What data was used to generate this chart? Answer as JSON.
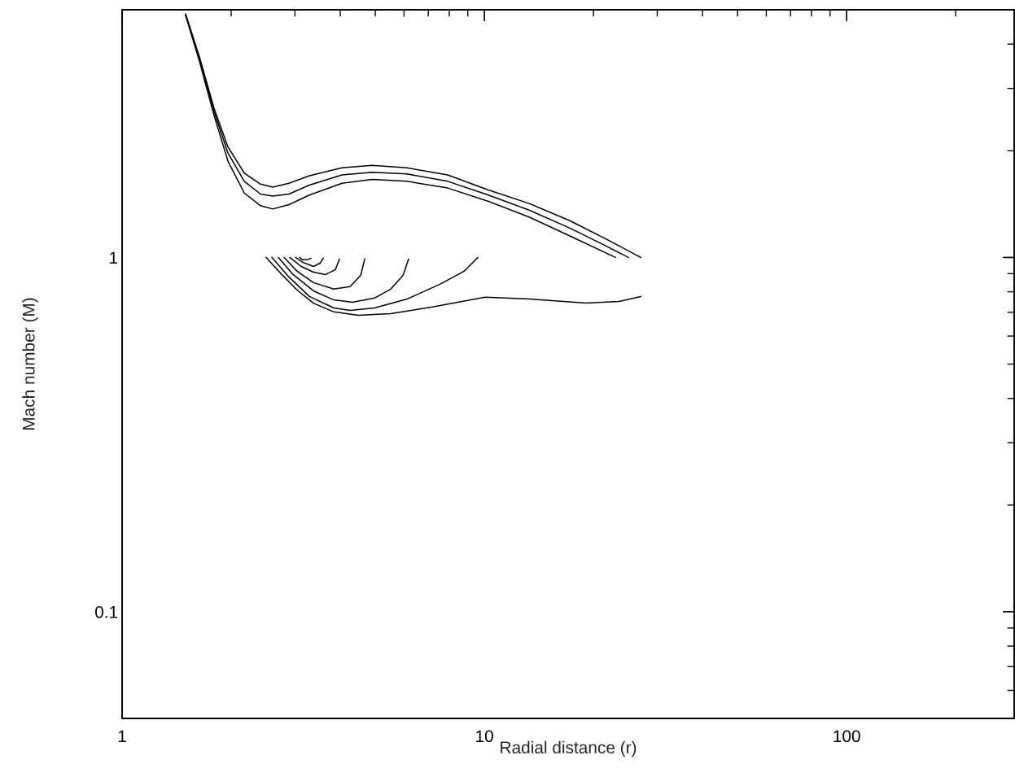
{
  "chart_data": {
    "type": "line",
    "xlabel": "Radial distance (r)",
    "ylabel": "Mach number (M)",
    "log": "xy",
    "xlim": [
      1,
      290
    ],
    "ylim": [
      0.05,
      5
    ],
    "xticks": [
      1,
      10,
      100
    ],
    "yticks": [
      0.1,
      1
    ],
    "series": [
      {
        "color": "#000000",
        "x": [
          1.497,
          1.635,
          1.795,
          1.96,
          2.174,
          2.41,
          2.605,
          2.888,
          3.288,
          4.044,
          4.897,
          6.115,
          7.92,
          10.26,
          13.29,
          17.22,
          22.3,
          27.01
        ],
        "values": [
          4.87,
          3.68,
          2.63,
          2.05,
          1.73,
          1.61,
          1.58,
          1.62,
          1.7,
          1.79,
          1.82,
          1.79,
          1.71,
          1.55,
          1.42,
          1.27,
          1.11,
          1.0
        ]
      },
      {
        "color": "#000000",
        "x": [
          1.497,
          1.635,
          1.795,
          1.96,
          2.174,
          2.41,
          2.605,
          2.888,
          3.288,
          4.044,
          4.897,
          6.115,
          7.92,
          10.26,
          13.29,
          17.22,
          21.18,
          24.99
        ],
        "values": [
          4.84,
          3.64,
          2.58,
          1.97,
          1.64,
          1.51,
          1.49,
          1.51,
          1.6,
          1.71,
          1.74,
          1.72,
          1.64,
          1.5,
          1.36,
          1.21,
          1.09,
          1.0
        ]
      },
      {
        "color": "#000000",
        "x": [
          1.497,
          1.635,
          1.795,
          1.96,
          2.174,
          2.41,
          2.605,
          2.888,
          3.288,
          4.044,
          4.897,
          6.115,
          7.92,
          10.26,
          13.29,
          17.22,
          23.0
        ],
        "values": [
          4.82,
          3.58,
          2.51,
          1.87,
          1.52,
          1.4,
          1.37,
          1.41,
          1.5,
          1.62,
          1.66,
          1.64,
          1.57,
          1.44,
          1.3,
          1.15,
          1.0
        ]
      },
      {
        "color": "#000000",
        "x": [
          2.5,
          2.744,
          3.042,
          3.374,
          3.839,
          4.485,
          5.515,
          7.145,
          10.05,
          13.29,
          19.1,
          23.49,
          27.01
        ],
        "values": [
          1.0,
          0.9,
          0.809,
          0.743,
          0.702,
          0.687,
          0.694,
          0.724,
          0.772,
          0.763,
          0.743,
          0.751,
          0.776
        ]
      },
      {
        "color": "#000000",
        "x": [
          2.592,
          2.888,
          3.288,
          3.839,
          4.259,
          4.974,
          6.115,
          7.52,
          8.79,
          9.59
        ],
        "values": [
          1.0,
          0.881,
          0.776,
          0.72,
          0.709,
          0.72,
          0.763,
          0.839,
          0.914,
          1.0
        ]
      },
      {
        "color": "#000000",
        "x": [
          2.701,
          2.964,
          3.374,
          3.839,
          4.325,
          4.974,
          5.515,
          5.962,
          6.18
        ],
        "values": [
          1.0,
          0.895,
          0.805,
          0.759,
          0.747,
          0.768,
          0.814,
          0.89,
          0.99
        ]
      },
      {
        "color": "#000000",
        "x": [
          2.802,
          3.042,
          3.374,
          3.839,
          4.259,
          4.555,
          4.675
        ],
        "values": [
          1.0,
          0.914,
          0.849,
          0.814,
          0.827,
          0.89,
          0.99
        ]
      },
      {
        "color": "#000000",
        "x": [
          2.903,
          3.122,
          3.374,
          3.647,
          3.879,
          3.981
        ],
        "values": [
          1.0,
          0.943,
          0.909,
          0.895,
          0.924,
          0.99
        ]
      },
      {
        "color": "#000000",
        "x": [
          3.011,
          3.154,
          3.374,
          3.517,
          3.591
        ],
        "values": [
          1.0,
          0.969,
          0.943,
          0.963,
          0.995
        ]
      },
      {
        "color": "#000000",
        "x": [
          3.09,
          3.15,
          3.24,
          3.322
        ],
        "values": [
          1.0,
          0.985,
          0.985,
          0.995
        ]
      }
    ]
  }
}
